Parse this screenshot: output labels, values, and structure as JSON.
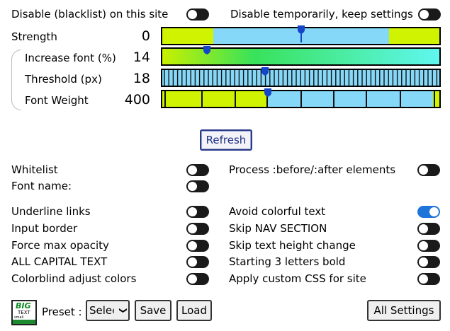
{
  "top": {
    "disable_site_label": "Disable (blacklist) on this site",
    "disable_temp_label": "Disable temporarily, keep settings"
  },
  "sliders": {
    "strength": {
      "label": "Strength",
      "value": "0",
      "fraction": 0.5
    },
    "increase_font": {
      "label": "Increase font (%)",
      "value": "14",
      "fraction": 0.16
    },
    "threshold": {
      "label": "Threshold (px)",
      "value": "18",
      "fraction": 0.37
    },
    "font_weight": {
      "label": "Font Weight",
      "value": "400",
      "fraction": 0.38
    }
  },
  "refresh_label": "Refresh",
  "options": {
    "whitelist": "Whitelist",
    "font_name": "Font name:",
    "process_before_after": "Process :before/:after elements",
    "underline_links": "Underline links",
    "input_border": "Input border",
    "force_max_opacity": "Force max opacity",
    "all_capital": "ALL CAPITAL TEXT",
    "colorblind": "Colorblind adjust colors",
    "avoid_colorful": "Avoid colorful text",
    "skip_nav": "Skip NAV SECTION",
    "skip_height": "Skip text height change",
    "starting_bold": "Starting 3 letters bold",
    "custom_css": "Apply custom CSS for site"
  },
  "toggles_state": {
    "avoid_colorful": true
  },
  "footer": {
    "logo_big": "BIG",
    "logo_text": "TEXT",
    "logo_small": "small",
    "preset_label": "Preset :",
    "preset_selected": "Select",
    "save_label": "Save",
    "load_label": "Load",
    "all_settings_label": "All Settings"
  },
  "colors": {
    "accent_on": "#1e74d8",
    "slider_lime": "#cff300",
    "slider_sky": "#86d8f8",
    "thumb": "#1446c8"
  }
}
